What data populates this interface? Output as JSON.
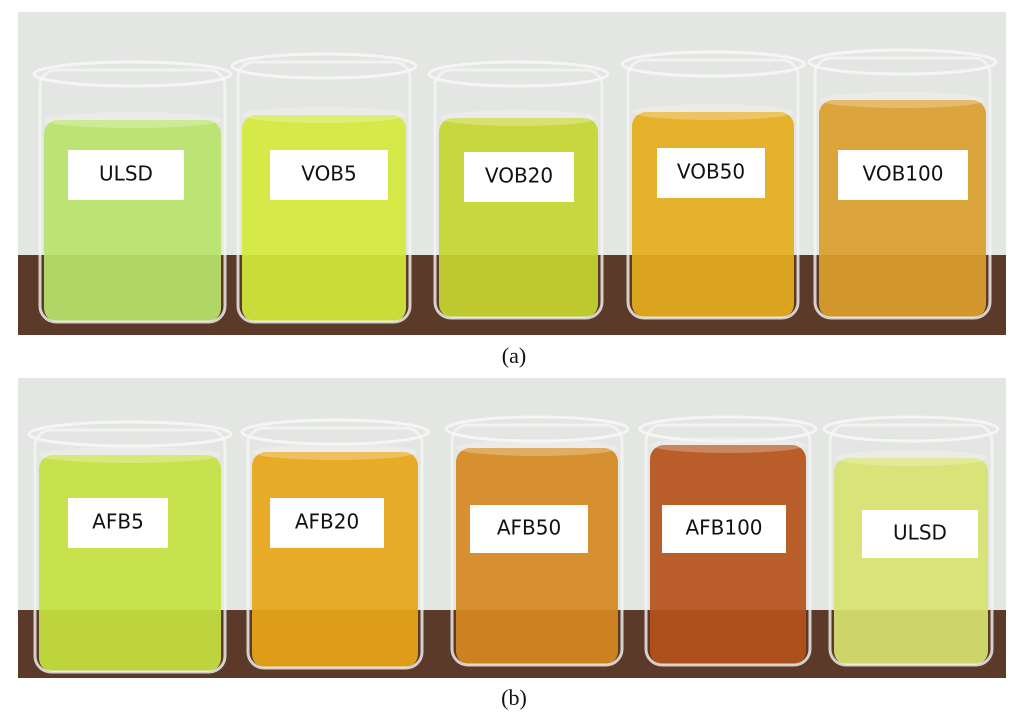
{
  "panels": [
    {
      "labels": [
        "ULSD",
        "VOB5",
        "VOB20",
        "VOB50",
        "VOB100"
      ],
      "caption": "(a)"
    },
    {
      "labels": [
        "AFB5",
        "AFB20",
        "AFB50",
        "AFB100",
        "ULSD"
      ],
      "caption": "(b)"
    }
  ]
}
